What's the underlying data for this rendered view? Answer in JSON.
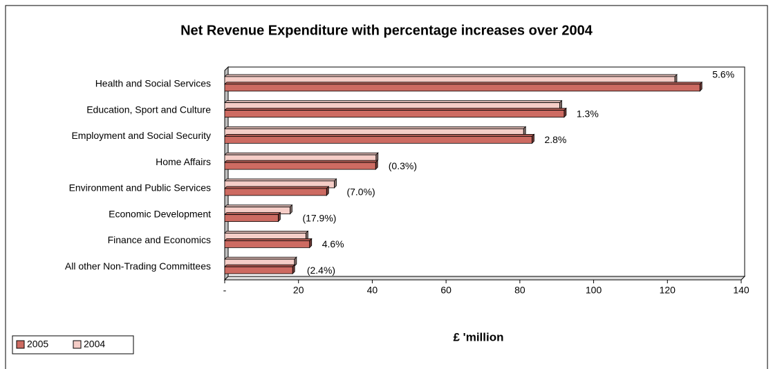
{
  "chart_data": {
    "type": "bar",
    "orientation": "horizontal",
    "title": "Net Revenue Expenditure with percentage increases over 2004",
    "xlabel": "£ 'million",
    "categories": [
      "Health and Social Services",
      "Education, Sport and Culture",
      "Employment and Social Security",
      "Home Affairs",
      "Environment and Public Services",
      "Economic Development",
      "Finance and Economics",
      "All other Non-Trading Committees"
    ],
    "series": [
      {
        "name": "2005",
        "color": "#cd6b62",
        "values": [
          128.8,
          92.0,
          83.3,
          40.9,
          27.6,
          14.5,
          23.0,
          18.4
        ]
      },
      {
        "name": "2004",
        "color": "#f5cdc7",
        "values": [
          122.0,
          90.8,
          81.0,
          41.0,
          29.7,
          17.7,
          22.0,
          18.9
        ]
      }
    ],
    "percent_labels": [
      "5.6%",
      "1.3%",
      "2.8%",
      "(0.3%)",
      "(7.0%)",
      "(17.9%)",
      "4.6%",
      "(2.4%)"
    ],
    "xlim": [
      0,
      140
    ],
    "xticks": [
      {
        "value": 0,
        "label": "-"
      },
      20,
      40,
      60,
      80,
      100,
      120,
      140
    ],
    "legend": "bottom-left"
  }
}
